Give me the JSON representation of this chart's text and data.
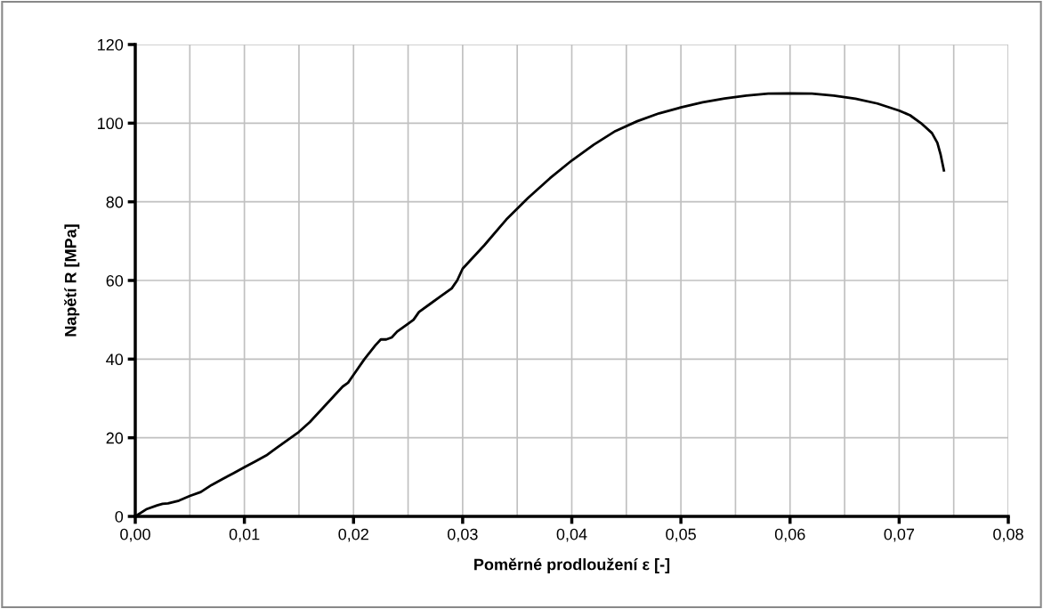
{
  "chart_data": {
    "type": "line",
    "xlabel": "Poměrné prodloužení ε [-]",
    "ylabel": "Napětí R [MPa]",
    "xlim": [
      0,
      0.08
    ],
    "ylim": [
      0,
      120
    ],
    "xticks": [
      {
        "value": 0,
        "label": "0,00"
      },
      {
        "value": 0.005,
        "label": null
      },
      {
        "value": 0.01,
        "label": "0,01"
      },
      {
        "value": 0.015,
        "label": null
      },
      {
        "value": 0.02,
        "label": "0,02"
      },
      {
        "value": 0.025,
        "label": null
      },
      {
        "value": 0.03,
        "label": "0,03"
      },
      {
        "value": 0.035,
        "label": null
      },
      {
        "value": 0.04,
        "label": "0,04"
      },
      {
        "value": 0.045,
        "label": null
      },
      {
        "value": 0.05,
        "label": "0,05"
      },
      {
        "value": 0.055,
        "label": null
      },
      {
        "value": 0.06,
        "label": "0,06"
      },
      {
        "value": 0.065,
        "label": null
      },
      {
        "value": 0.07,
        "label": "0,07"
      },
      {
        "value": 0.075,
        "label": null
      },
      {
        "value": 0.08,
        "label": "0,08"
      }
    ],
    "yticks": [
      0,
      20,
      40,
      60,
      80,
      100,
      120
    ],
    "grid": true,
    "marker": "none",
    "line_style": "solid",
    "series": [
      {
        "color": "#000000",
        "x": [
          0,
          0.001,
          0.002,
          0.0025,
          0.003,
          0.004,
          0.005,
          0.006,
          0.007,
          0.008,
          0.009,
          0.01,
          0.011,
          0.012,
          0.013,
          0.014,
          0.015,
          0.016,
          0.017,
          0.018,
          0.019,
          0.0195,
          0.02,
          0.021,
          0.022,
          0.0225,
          0.023,
          0.0235,
          0.024,
          0.025,
          0.0255,
          0.026,
          0.027,
          0.028,
          0.029,
          0.0295,
          0.03,
          0.032,
          0.034,
          0.036,
          0.038,
          0.04,
          0.042,
          0.044,
          0.046,
          0.048,
          0.05,
          0.052,
          0.054,
          0.056,
          0.058,
          0.06,
          0.062,
          0.064,
          0.066,
          0.068,
          0.07,
          0.071,
          0.072,
          0.073,
          0.0735,
          0.0738,
          0.0741
        ],
        "values": [
          0,
          1.8,
          2.8,
          3.2,
          3.3,
          4,
          5.2,
          6.2,
          8,
          9.5,
          11,
          12.5,
          14,
          15.5,
          17.5,
          19.5,
          21.5,
          24,
          27,
          30,
          33,
          34,
          36,
          40,
          43.5,
          45,
          45,
          45.5,
          47,
          49,
          50,
          52,
          54,
          56,
          58,
          60,
          63,
          69,
          75.5,
          81,
          86,
          90.5,
          94.5,
          98,
          100.5,
          102.5,
          104,
          105.3,
          106.3,
          107,
          107.5,
          107.6,
          107.5,
          107,
          106.2,
          105,
          103.2,
          102,
          100,
          97.5,
          95,
          92,
          88
        ]
      }
    ]
  }
}
